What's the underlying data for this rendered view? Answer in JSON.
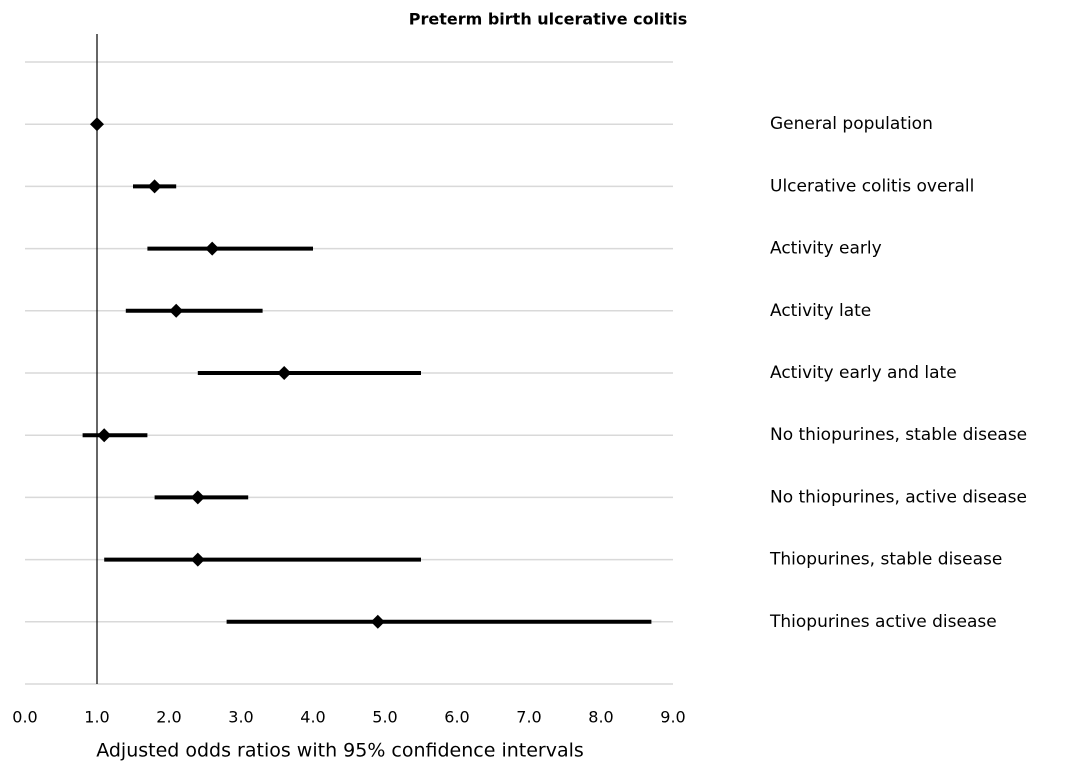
{
  "chart_data": {
    "type": "forest",
    "title": "Preterm birth ulcerative colitis",
    "x_label": "Adjusted odds ratios with 95% confidence intervals",
    "categories": [
      "General population",
      "Ulcerative colitis overall",
      "Activity early",
      "Activity late",
      "Activity early and late",
      "No thiopurines, stable disease",
      "No thiopurines, active disease",
      "Thiopurines, stable disease",
      "Thiopurines active disease"
    ],
    "values": [
      1.0,
      1.8,
      2.6,
      2.1,
      3.6,
      1.1,
      2.4,
      2.4,
      4.9
    ],
    "lower": [
      null,
      1.5,
      1.7,
      1.4,
      2.4,
      0.8,
      1.8,
      1.1,
      2.8
    ],
    "upper": [
      null,
      2.1,
      4.0,
      3.3,
      5.5,
      1.7,
      3.1,
      5.5,
      8.7
    ],
    "color": "#000000",
    "xlim": [
      0,
      9
    ],
    "xticks": [
      {
        "value": 0,
        "label": "0.0"
      },
      {
        "value": 1,
        "label": "1.0"
      },
      {
        "value": 2,
        "label": "2.0"
      },
      {
        "value": 3,
        "label": "3.0"
      },
      {
        "value": 4,
        "label": "4.0"
      },
      {
        "value": 5,
        "label": "5.0"
      },
      {
        "value": 6,
        "label": "6.0"
      },
      {
        "value": 7,
        "label": "7.0"
      },
      {
        "value": 8,
        "label": "8.0"
      },
      {
        "value": 9,
        "label": "9.0"
      }
    ],
    "reference_line": 1,
    "grid": true
  }
}
